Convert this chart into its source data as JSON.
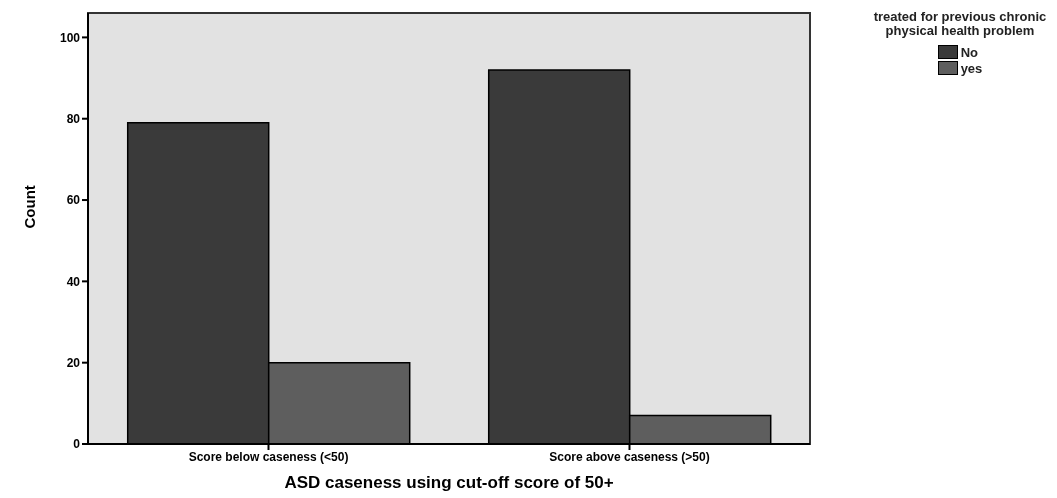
{
  "chart_data": {
    "type": "bar",
    "xlabel": "ASD caseness using cut-off score of 50+",
    "ylabel": "Count",
    "legend_title": "treated for previous chronic physical health problem",
    "categories": [
      "Score below caseness (<50)",
      "Score above caseness (>50)"
    ],
    "series": [
      {
        "name": "No",
        "color": "#3a3a3a",
        "values": [
          79,
          92
        ]
      },
      {
        "name": "yes",
        "color": "#5e5e5e",
        "values": [
          20,
          7
        ]
      }
    ],
    "ylim": [
      0,
      106
    ],
    "yticks": [
      0,
      20,
      40,
      60,
      80,
      100
    ],
    "grid": false,
    "legend": "top right"
  }
}
